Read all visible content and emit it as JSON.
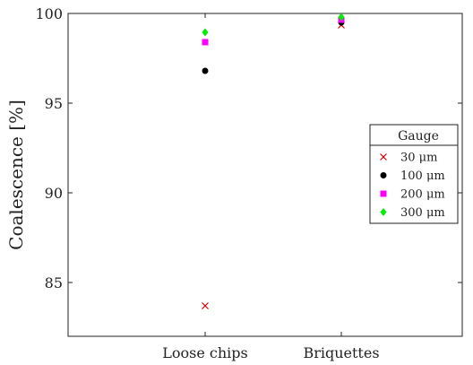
{
  "chart_data": {
    "type": "scatter",
    "categories": [
      "Loose chips",
      "Briquettes"
    ],
    "ylabel": "Coalescence [%]",
    "xlabel": "",
    "ylim": [
      82,
      100
    ],
    "yticks": [
      85,
      90,
      95,
      100
    ],
    "grid": false,
    "legend": {
      "title": "Gauge",
      "placement": "right"
    },
    "series": [
      {
        "name": "30 μm",
        "marker": "x",
        "color": "#cc0000",
        "values": [
          83.7,
          99.35
        ]
      },
      {
        "name": "100 μm",
        "marker": "circle",
        "color": "#000000",
        "values": [
          96.8,
          99.5
        ]
      },
      {
        "name": "200 μm",
        "marker": "square",
        "color": "#ff00ff",
        "values": [
          98.4,
          99.65
        ]
      },
      {
        "name": "300 μm",
        "marker": "diamond",
        "color": "#00ee00",
        "values": [
          98.95,
          99.8
        ]
      }
    ]
  }
}
